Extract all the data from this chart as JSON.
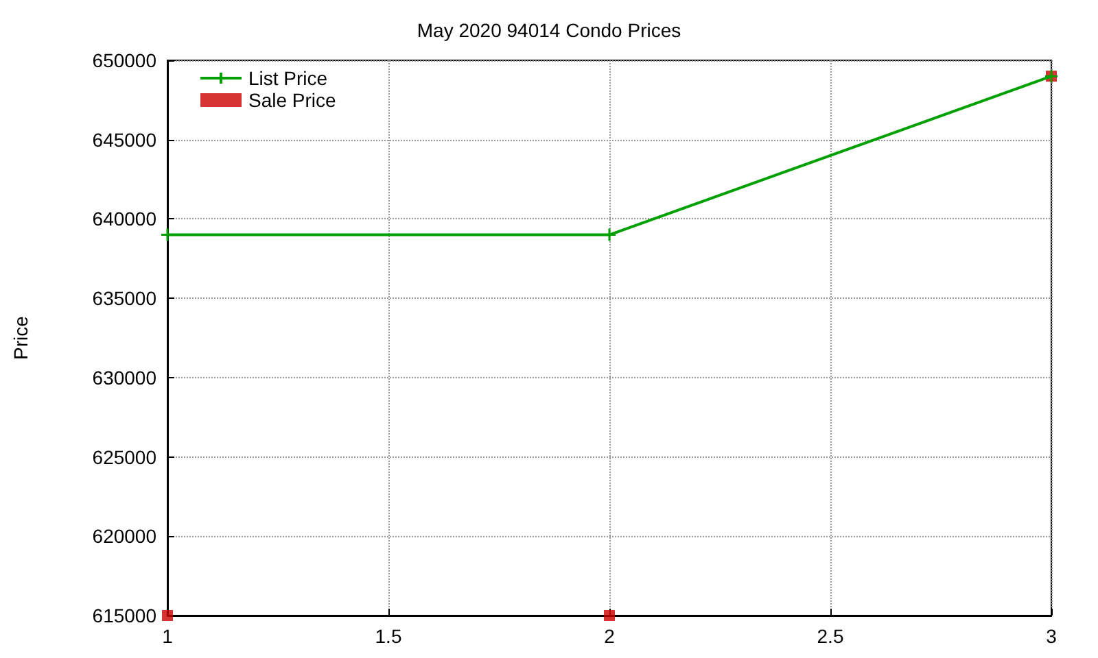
{
  "chart_data": {
    "type": "line",
    "title": "May 2020 94014 Condo Prices",
    "ylabel": "Price",
    "x": [
      1,
      2,
      3
    ],
    "series": [
      {
        "name": "List Price",
        "color": "#00a000",
        "marker": "cross",
        "values": [
          639000,
          639000,
          649000
        ]
      },
      {
        "name": "Sale Price",
        "type": "scatter",
        "color": "#cc0000",
        "marker": "square",
        "values": [
          615000,
          615000,
          649000
        ]
      }
    ],
    "xlim": [
      1,
      3
    ],
    "xticks": [
      1,
      1.5,
      2,
      2.5,
      3
    ],
    "ylim": [
      615000,
      650000
    ],
    "yticks": [
      615000,
      620000,
      625000,
      630000,
      635000,
      640000,
      645000,
      650000
    ],
    "grid": true,
    "legend": "top left"
  }
}
